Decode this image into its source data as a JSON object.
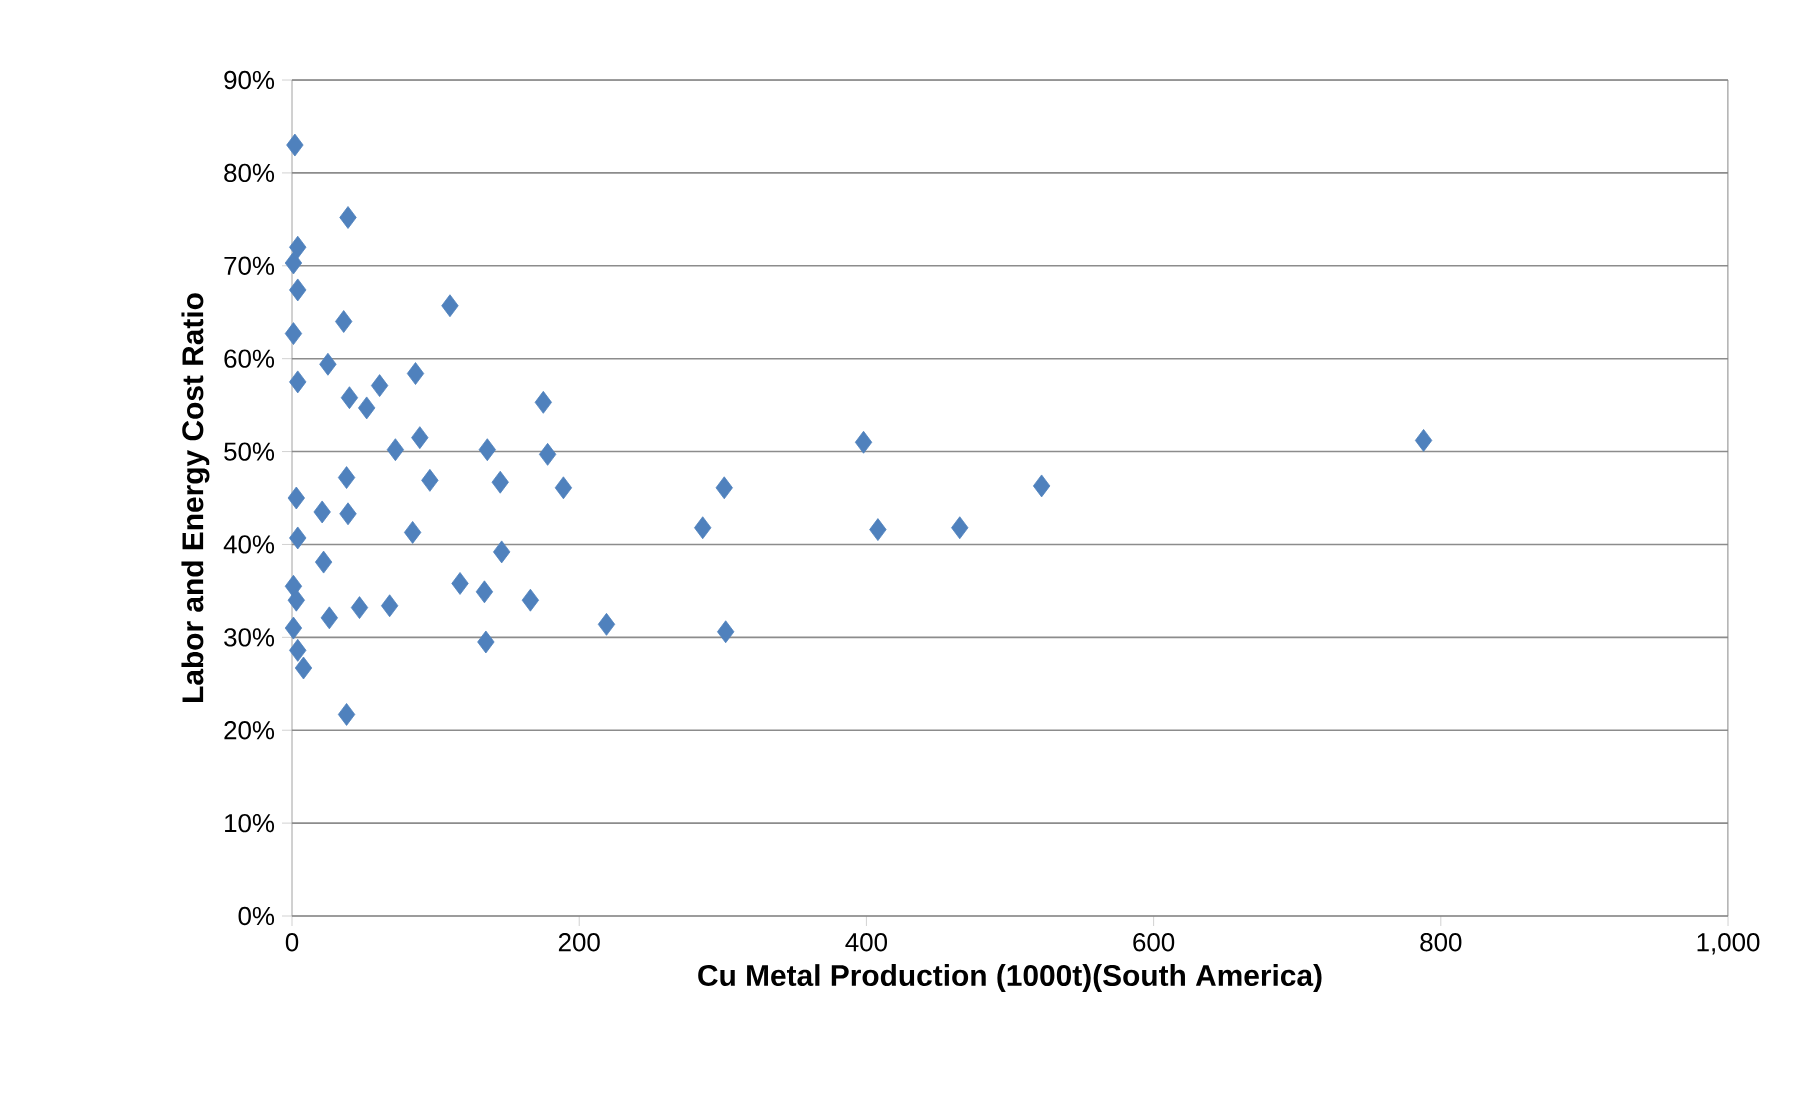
{
  "chart_data": {
    "type": "scatter",
    "xlabel": "Cu Metal Production (1000t)(South America)",
    "ylabel": "Labor and Energy Cost Ratio",
    "marker": "diamond",
    "grid": "y",
    "xlim": [
      0,
      1000
    ],
    "xticks": [
      0,
      200,
      400,
      600,
      800,
      {
        "value": 1000,
        "label": "1,000"
      }
    ],
    "ylim": [
      0,
      90
    ],
    "yticks": [
      {
        "value": 0,
        "label": "0%"
      },
      {
        "value": 10,
        "label": "10%"
      },
      {
        "value": 20,
        "label": "20%"
      },
      {
        "value": 30,
        "label": "30%"
      },
      {
        "value": 40,
        "label": "40%"
      },
      {
        "value": 50,
        "label": "50%"
      },
      {
        "value": 60,
        "label": "60%"
      },
      {
        "value": 70,
        "label": "70%"
      },
      {
        "value": 80,
        "label": "80%"
      },
      {
        "value": 90,
        "label": "90%"
      }
    ],
    "series": [
      {
        "color": "#4f81bd",
        "x": [
          2,
          39,
          4,
          1,
          4,
          110,
          36,
          1,
          25,
          4,
          86,
          40,
          52,
          61,
          175,
          72,
          89,
          136,
          178,
          96,
          145,
          189,
          38,
          3,
          21,
          39,
          4,
          84,
          146,
          22,
          117,
          134,
          166,
          1,
          3,
          47,
          68,
          26,
          1,
          219,
          135,
          4,
          8,
          38,
          301,
          286,
          302,
          398,
          408,
          465,
          522,
          788
        ],
        "values": [
          83,
          75.2,
          72,
          70.3,
          67.4,
          65.7,
          64,
          62.7,
          59.4,
          57.5,
          58.4,
          55.8,
          54.7,
          57.1,
          55.3,
          50.2,
          51.5,
          50.2,
          49.7,
          46.9,
          46.7,
          46.1,
          47.2,
          45,
          43.5,
          43.3,
          40.7,
          41.3,
          39.2,
          38.1,
          35.8,
          34.9,
          34,
          35.5,
          34,
          33.2,
          33.4,
          32.1,
          31,
          31.4,
          29.5,
          28.6,
          26.7,
          21.7,
          46.1,
          41.8,
          30.6,
          51,
          41.6,
          41.8,
          46.3,
          51.2
        ]
      }
    ]
  }
}
